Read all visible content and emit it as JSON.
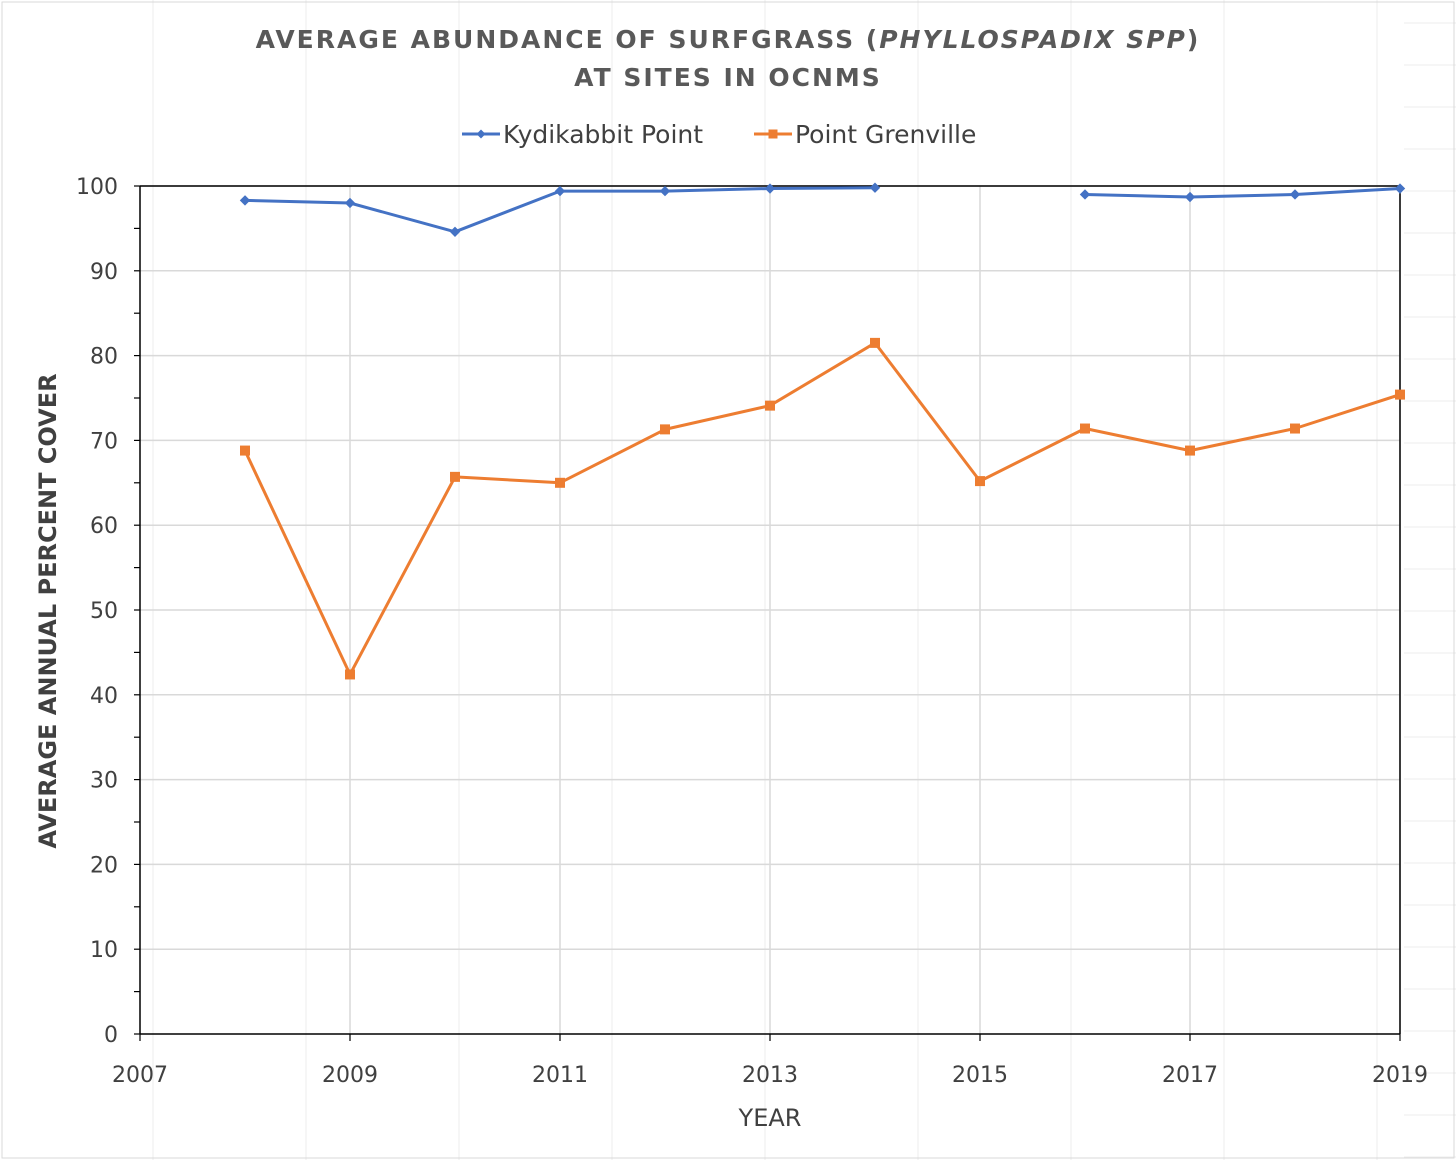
{
  "chart_data": {
    "type": "line",
    "title_line1_prefix": "AVERAGE ABUNDANCE OF SURFGRASS (",
    "title_line1_italic": "PHYLLOSPADIX SPP",
    "title_line1_suffix": ")",
    "title_line2": "AT SITES IN OCNMS",
    "xlabel": "YEAR",
    "ylabel": "AVERAGE ANNUAL PERCENT COVER",
    "xlim": [
      2007,
      2019
    ],
    "ylim": [
      0,
      100
    ],
    "x_ticks": [
      "2007",
      "2009",
      "2011",
      "2013",
      "2015",
      "2017",
      "2019"
    ],
    "y_ticks": [
      "0",
      "10",
      "20",
      "30",
      "40",
      "50",
      "60",
      "70",
      "80",
      "90",
      "100"
    ],
    "grid": true,
    "legend_position": "top",
    "series": [
      {
        "name": "Kydikabbit Point",
        "color": "#4472C4",
        "marker": "diamond",
        "points": [
          {
            "x": 2008,
            "y": 98.3
          },
          {
            "x": 2009,
            "y": 98.0
          },
          {
            "x": 2010,
            "y": 94.6
          },
          {
            "x": 2011,
            "y": 99.4
          },
          {
            "x": 2012,
            "y": 99.4
          },
          {
            "x": 2013,
            "y": 99.7
          },
          {
            "x": 2014,
            "y": 99.8
          },
          {
            "x": 2015,
            "y": null
          },
          {
            "x": 2016,
            "y": 99.0
          },
          {
            "x": 2017,
            "y": 98.7
          },
          {
            "x": 2018,
            "y": 99.0
          },
          {
            "x": 2019,
            "y": 99.7
          }
        ]
      },
      {
        "name": "Point Grenville",
        "color": "#ED7D31",
        "marker": "square",
        "points": [
          {
            "x": 2008,
            "y": 68.8
          },
          {
            "x": 2009,
            "y": 42.4
          },
          {
            "x": 2010,
            "y": 65.7
          },
          {
            "x": 2011,
            "y": 65.0
          },
          {
            "x": 2012,
            "y": 71.3
          },
          {
            "x": 2013,
            "y": 74.1
          },
          {
            "x": 2014,
            "y": 81.5
          },
          {
            "x": 2015,
            "y": 65.2
          },
          {
            "x": 2016,
            "y": 71.4
          },
          {
            "x": 2017,
            "y": 68.8
          },
          {
            "x": 2018,
            "y": 71.4
          },
          {
            "x": 2019,
            "y": 75.4
          }
        ]
      }
    ]
  }
}
